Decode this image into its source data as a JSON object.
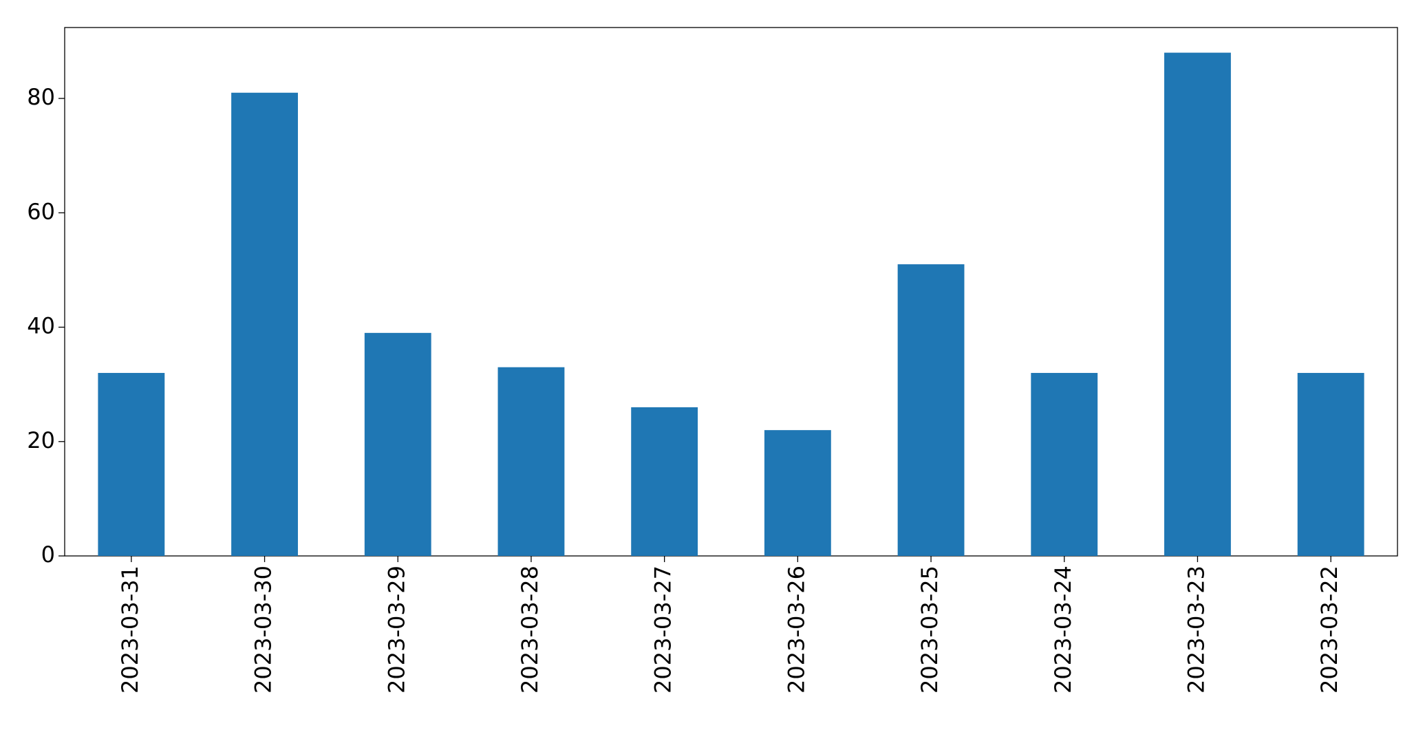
{
  "chart_data": {
    "type": "bar",
    "categories": [
      "2023-03-31",
      "2023-03-30",
      "2023-03-29",
      "2023-03-28",
      "2023-03-27",
      "2023-03-26",
      "2023-03-25",
      "2023-03-24",
      "2023-03-23",
      "2023-03-22"
    ],
    "values": [
      32,
      81,
      39,
      33,
      26,
      22,
      51,
      32,
      88,
      32
    ],
    "color": "#1f77b4",
    "ylim": [
      0,
      92.4
    ],
    "yticks": [
      0,
      20,
      40,
      60,
      80
    ],
    "grid": false
  }
}
